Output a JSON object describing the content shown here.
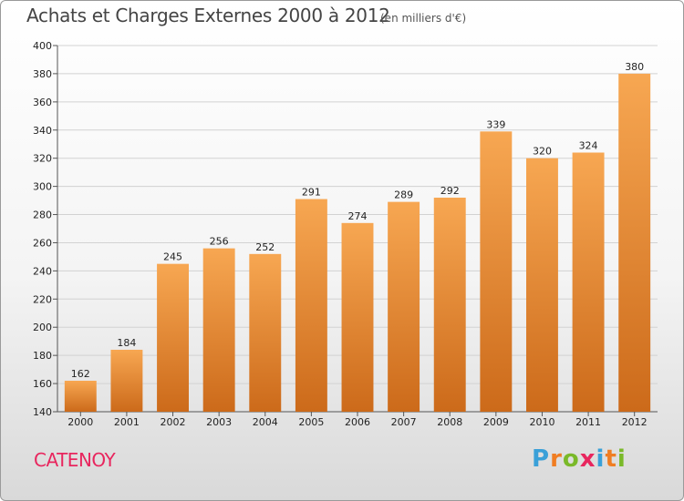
{
  "chart_data": {
    "type": "bar",
    "title": "Achats et Charges Externes 2000 à 2012",
    "subtitle": "(en milliers d'€)",
    "categories": [
      "2000",
      "2001",
      "2002",
      "2003",
      "2004",
      "2005",
      "2006",
      "2007",
      "2008",
      "2009",
      "2010",
      "2011",
      "2012"
    ],
    "values": [
      162,
      184,
      245,
      256,
      252,
      291,
      274,
      289,
      292,
      339,
      320,
      324,
      380
    ],
    "ylim": [
      140,
      400
    ],
    "yticks": [
      140,
      160,
      180,
      200,
      220,
      240,
      260,
      280,
      300,
      320,
      340,
      360,
      380,
      400
    ],
    "grid": true,
    "bar_color_top": "#f7a752",
    "bar_color_bottom": "#cc6a1a"
  },
  "footer": {
    "city": "CATENOY",
    "logo_text": "Proxiti",
    "logo_colors": [
      "#3aa0d8",
      "#f07d22",
      "#7ab929",
      "#e8265e",
      "#3aa0d8",
      "#f07d22",
      "#7ab929"
    ]
  }
}
